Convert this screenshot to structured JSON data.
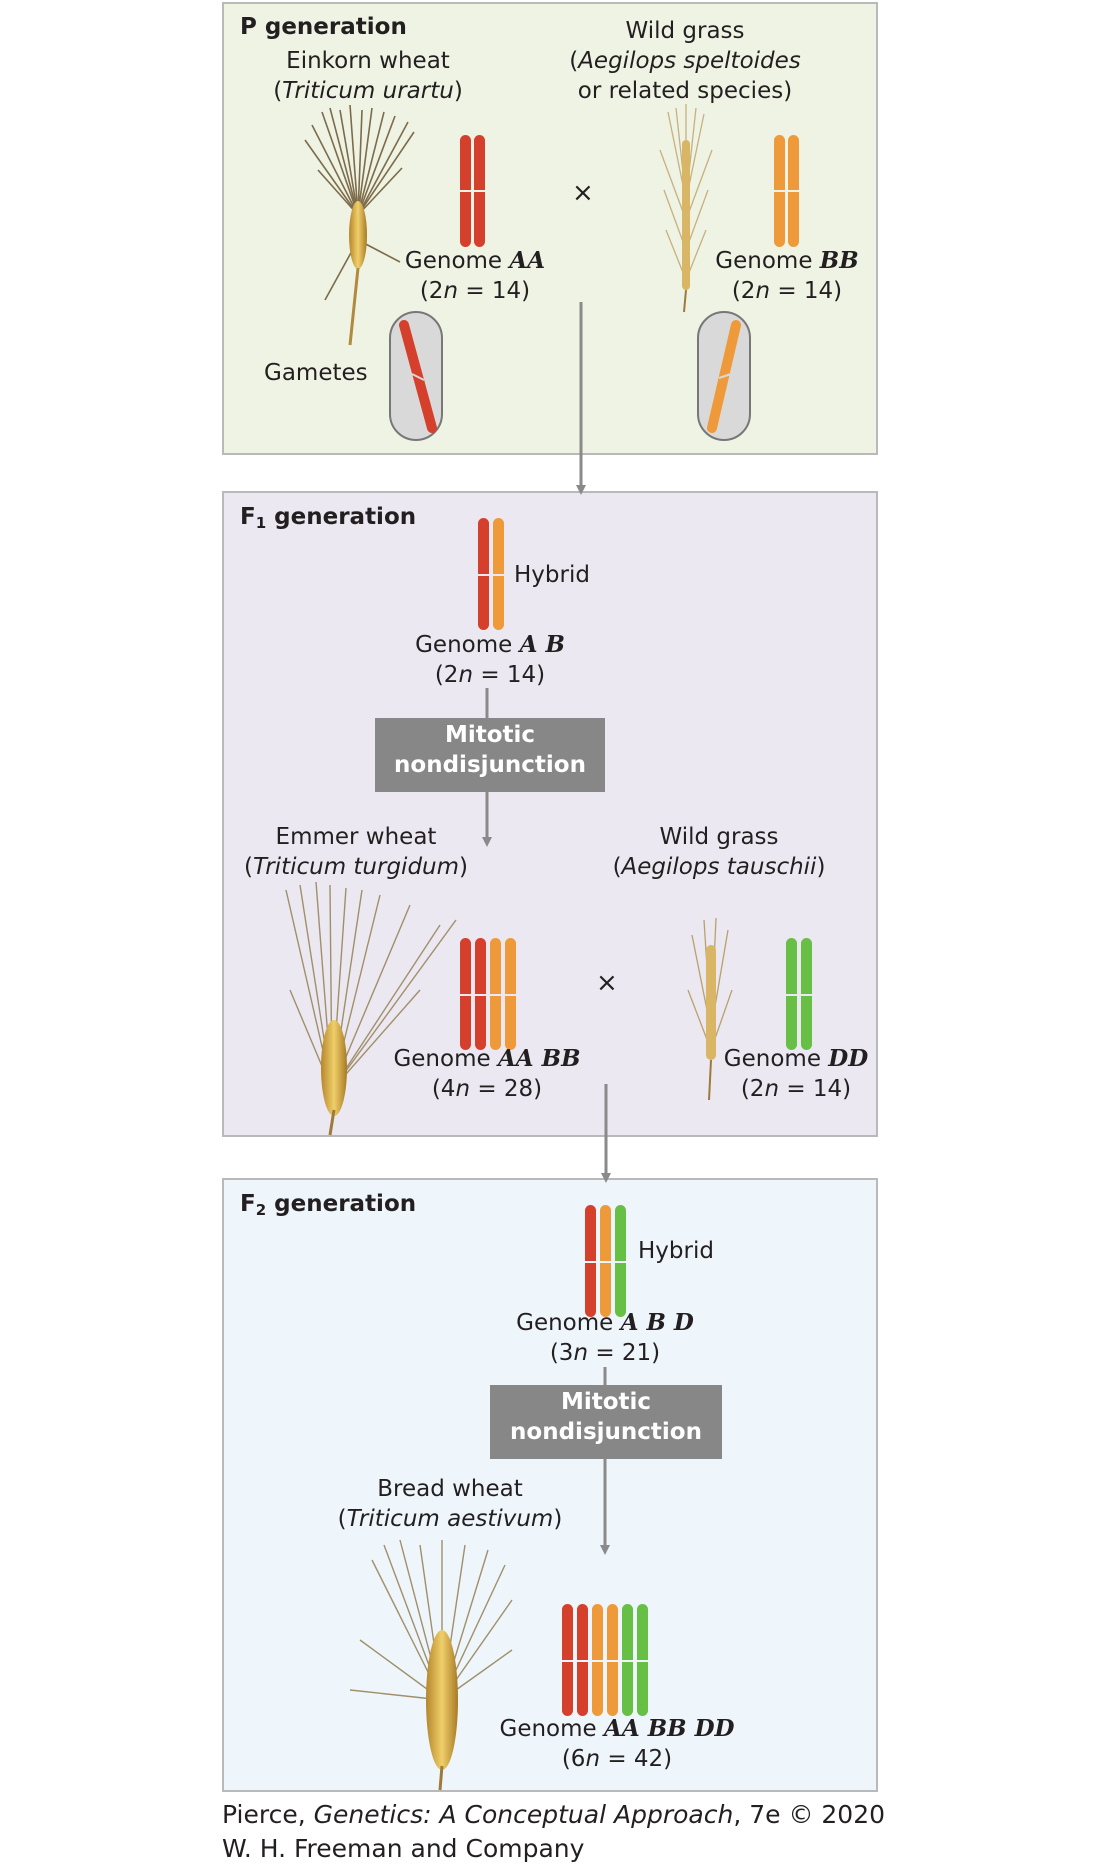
{
  "p_generation": {
    "heading": "P generation",
    "einkorn": {
      "name": "Einkorn wheat",
      "species": "Triticum urartu",
      "genome_label": "Genome",
      "genome_code": "AA",
      "ploidy": "(2n = 14)",
      "ploidy_n": "n",
      "ploidy_pre": "(2",
      "ploidy_post": " = 14)"
    },
    "wild_grass": {
      "name": "Wild grass",
      "species_line1": "Aegilops speltoides",
      "species_line2": "or related species",
      "genome_label": "Genome",
      "genome_code": "BB",
      "ploidy_pre": "(2",
      "ploidy_n": "n",
      "ploidy_post": " = 14)"
    },
    "cross_symbol": "×",
    "gametes_label": "Gametes"
  },
  "f1_generation": {
    "heading_main": "F",
    "heading_sub": "1",
    "heading_rest": " generation",
    "hybrid_label": "Hybrid",
    "hybrid_genome_label": "Genome",
    "hybrid_genome_code": "A B",
    "hybrid_ploidy_pre": "(2",
    "hybrid_ploidy_n": "n",
    "hybrid_ploidy_post": " = 14)",
    "process_line1": "Mitotic",
    "process_line2": "nondisjunction",
    "emmer": {
      "name": "Emmer wheat",
      "species": "Triticum turgidum",
      "genome_label": "Genome",
      "genome_code": "AA BB",
      "ploidy_pre": "(4",
      "ploidy_n": "n",
      "ploidy_post": " = 28)"
    },
    "wild_grass": {
      "name": "Wild grass",
      "species": "Aegilops tauschii",
      "genome_label": "Genome",
      "genome_code": "DD",
      "ploidy_pre": "(2",
      "ploidy_n": "n",
      "ploidy_post": " = 14)"
    },
    "cross_symbol": "×"
  },
  "f2_generation": {
    "heading_main": "F",
    "heading_sub": "2",
    "heading_rest": " generation",
    "hybrid_label": "Hybrid",
    "hybrid_genome_label": "Genome",
    "hybrid_genome_code": "A B D",
    "hybrid_ploidy_pre": "(3",
    "hybrid_ploidy_n": "n",
    "hybrid_ploidy_post": " = 21)",
    "process_line1": "Mitotic",
    "process_line2": "nondisjunction",
    "bread": {
      "name": "Bread wheat",
      "species": "Triticum aestivum",
      "genome_label": "Genome",
      "genome_code": "AA BB DD",
      "ploidy_pre": "(6",
      "ploidy_n": "n",
      "ploidy_post": " = 42)"
    }
  },
  "credit": {
    "line1_pre": "Pierce, ",
    "line1_title": "Genetics: A Conceptual Approach",
    "line1_post": ", 7e © 2020",
    "line2": "W. H. Freeman and Company"
  },
  "colors": {
    "genome_a": "#d5402c",
    "genome_b": "#ef9a3a",
    "genome_d": "#68bf45",
    "panel_p": "#eef3e4",
    "panel_f1": "#ece8f1",
    "panel_f2": "#eef6fb",
    "process_box": "#878787",
    "arrow": "#8a8a8a"
  }
}
